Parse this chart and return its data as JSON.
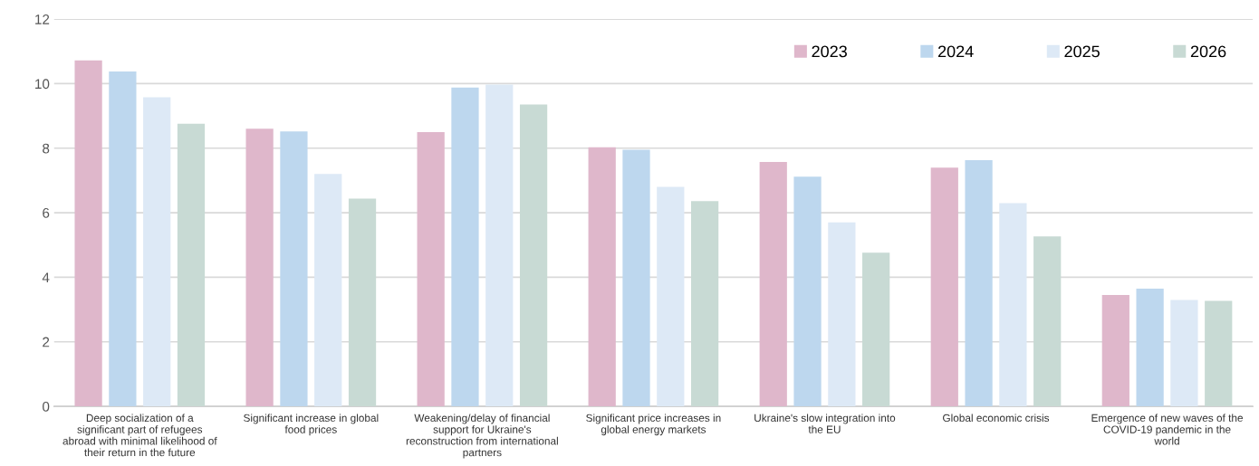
{
  "chart_data": {
    "type": "bar",
    "categories": [
      "Deep socialization of a\nsignificant part of refugees\nabroad with minimal likelihood of\ntheir return in the future",
      "Significant increase in global\nfood prices",
      "Weakening/delay of financial\nsupport for Ukraine's\nreconstruction from international\npartners",
      "Significant price increases in\nglobal energy markets",
      "Ukraine's slow integration into\nthe EU",
      "Global economic crisis",
      "Emergence of new waves of the\nCOVID-19 pandemic in the\nworld"
    ],
    "series": [
      {
        "name": "2023",
        "color": "#dfb7cb",
        "values": [
          10.72,
          8.6,
          8.5,
          8.03,
          7.57,
          7.4,
          3.45
        ]
      },
      {
        "name": "2024",
        "color": "#bdd7ee",
        "values": [
          10.38,
          8.52,
          9.88,
          7.95,
          7.12,
          7.63,
          3.65
        ]
      },
      {
        "name": "2025",
        "color": "#dde9f6",
        "values": [
          9.58,
          7.2,
          9.97,
          6.8,
          5.7,
          6.3,
          3.3
        ]
      },
      {
        "name": "2026",
        "color": "#c8dad4",
        "values": [
          8.76,
          6.44,
          9.35,
          6.36,
          4.76,
          5.27,
          3.27
        ]
      }
    ],
    "ylim": [
      0,
      12
    ],
    "yticks": [
      0,
      2,
      4,
      6,
      8,
      10,
      12
    ],
    "grid": "y",
    "legend": "top right"
  }
}
